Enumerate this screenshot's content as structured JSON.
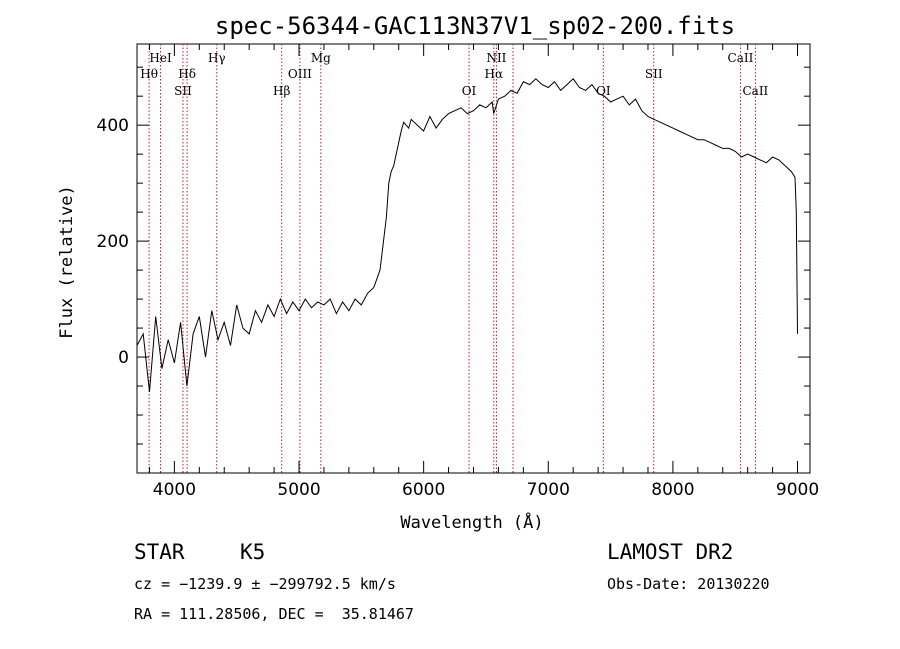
{
  "chart_data": {
    "type": "line",
    "title": "spec-56344-GAC113N37V1_sp02-200.fits",
    "xlabel": "Wavelength (Å)",
    "ylabel": "Flux (relative)",
    "xlim": [
      3700,
      9100
    ],
    "ylim": [
      -200,
      540
    ],
    "x_ticks": [
      4000,
      5000,
      6000,
      7000,
      8000,
      9000
    ],
    "y_ticks": [
      0,
      200,
      400
    ],
    "grid": false,
    "series": [
      {
        "color": "#000000",
        "x": [
          3700,
          3750,
          3800,
          3850,
          3900,
          3950,
          4000,
          4050,
          4100,
          4150,
          4200,
          4250,
          4300,
          4350,
          4400,
          4450,
          4500,
          4550,
          4600,
          4650,
          4700,
          4750,
          4800,
          4850,
          4900,
          4950,
          5000,
          5050,
          5100,
          5150,
          5200,
          5250,
          5300,
          5350,
          5400,
          5450,
          5500,
          5550,
          5600,
          5650,
          5700,
          5720,
          5740,
          5760,
          5780,
          5800,
          5820,
          5840,
          5860,
          5880,
          5900,
          5950,
          6000,
          6050,
          6100,
          6150,
          6200,
          6250,
          6300,
          6350,
          6400,
          6450,
          6500,
          6550,
          6562,
          6600,
          6650,
          6700,
          6750,
          6800,
          6850,
          6900,
          6950,
          7000,
          7050,
          7100,
          7150,
          7200,
          7250,
          7300,
          7350,
          7400,
          7450,
          7500,
          7550,
          7600,
          7650,
          7700,
          7750,
          7800,
          7850,
          7900,
          7950,
          8000,
          8050,
          8100,
          8150,
          8200,
          8250,
          8300,
          8350,
          8400,
          8450,
          8500,
          8550,
          8600,
          8650,
          8700,
          8750,
          8800,
          8850,
          8900,
          8950,
          8980,
          8990,
          9000
        ],
        "y": [
          20,
          40,
          -60,
          70,
          -20,
          30,
          -10,
          60,
          -50,
          40,
          70,
          0,
          80,
          30,
          60,
          20,
          90,
          50,
          40,
          80,
          60,
          90,
          70,
          100,
          75,
          95,
          80,
          100,
          85,
          95,
          90,
          100,
          75,
          95,
          80,
          100,
          90,
          110,
          120,
          150,
          240,
          300,
          320,
          330,
          350,
          370,
          390,
          405,
          400,
          395,
          410,
          400,
          390,
          415,
          395,
          410,
          420,
          425,
          430,
          420,
          425,
          435,
          430,
          440,
          420,
          445,
          450,
          460,
          455,
          475,
          470,
          480,
          470,
          465,
          475,
          460,
          470,
          480,
          465,
          460,
          470,
          455,
          450,
          440,
          445,
          450,
          435,
          445,
          425,
          415,
          410,
          405,
          400,
          395,
          390,
          385,
          380,
          375,
          375,
          370,
          365,
          360,
          360,
          355,
          345,
          350,
          345,
          340,
          335,
          345,
          340,
          330,
          320,
          310,
          250,
          40
        ]
      }
    ],
    "line_markers": [
      {
        "name": "Hθ",
        "x": 3797,
        "row": 2
      },
      {
        "name": "HeI",
        "x": 3889,
        "row": 1
      },
      {
        "name": "Hδ",
        "x": 4102,
        "row": 2
      },
      {
        "name": "SII",
        "x": 4069,
        "row": 3
      },
      {
        "name": "Hγ",
        "x": 4340,
        "row": 1
      },
      {
        "name": "Hβ",
        "x": 4861,
        "row": 3
      },
      {
        "name": "OIII",
        "x": 5007,
        "row": 2
      },
      {
        "name": "Mg",
        "x": 5175,
        "row": 1
      },
      {
        "name": "OI",
        "x": 6364,
        "row": 3
      },
      {
        "name": "NII",
        "x": 6584,
        "row": 1
      },
      {
        "name": "Hα",
        "x": 6563,
        "row": 2
      },
      {
        "name": "",
        "x": 6717,
        "row": 0
      },
      {
        "name": "OI",
        "x": 7442,
        "row": 3
      },
      {
        "name": "SII",
        "x": 7846,
        "row": 2
      },
      {
        "name": "CaII",
        "x": 8542,
        "row": 1
      },
      {
        "name": "CaII",
        "x": 8662,
        "row": 3
      }
    ],
    "marker_color": "#b22222"
  },
  "info": {
    "class_label": "STAR",
    "subclass_label": "K5",
    "survey_label": "LAMOST DR2",
    "cz_text": "cz = −1239.9 ± −299792.5 km/s",
    "obs_date_text": "Obs-Date: 20130220",
    "coords_text": "RA = 111.28506, DEC =  35.81467"
  }
}
